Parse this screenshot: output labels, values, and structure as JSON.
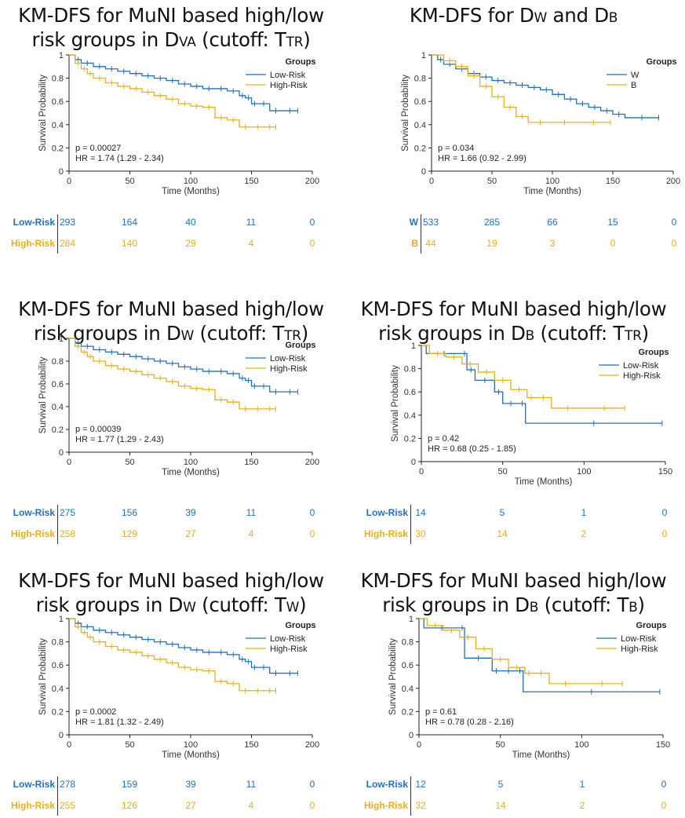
{
  "colors": {
    "low": "#1f6fc2",
    "high": "#e8b012"
  },
  "panels": [
    {
      "title_lines": [
        [
          {
            "t": "KM-DFS for MuNI based high/low"
          }
        ],
        [
          {
            "t": "risk groups in D"
          },
          {
            "t": "VA",
            "sc": true
          },
          {
            "t": " (cutoff: T"
          },
          {
            "t": "TR",
            "sc": true
          },
          {
            "t": ")"
          }
        ]
      ],
      "legend_title": "Groups",
      "stats": [
        "p = 0.00027",
        "HR = 1.74 (1.29 - 2.34)"
      ],
      "risk_table": {
        "times": [
          0,
          50,
          100,
          150,
          200
        ],
        "rows": [
          {
            "label": "Low-Risk",
            "values": [
              "293",
              "164",
              "40",
              "11",
              "0"
            ]
          },
          {
            "label": "High-Risk",
            "values": [
              "284",
              "140",
              "29",
              "4",
              "0"
            ]
          }
        ]
      }
    },
    {
      "title_lines": [
        [
          {
            "t": "KM-DFS for D"
          },
          {
            "t": "W",
            "sc": true
          },
          {
            "t": " and D"
          },
          {
            "t": "B",
            "sc": true
          }
        ]
      ],
      "legend_title": "Groups",
      "stats": [
        "p = 0.034",
        "HR = 1.66 (0.92 - 2.99)"
      ],
      "risk_table": {
        "times": [
          0,
          50,
          100,
          150,
          200
        ],
        "rows": [
          {
            "label": "W",
            "values": [
              "533",
              "285",
              "66",
              "15",
              "0"
            ]
          },
          {
            "label": "B",
            "values": [
              "44",
              "19",
              "3",
              "0",
              "0"
            ]
          }
        ]
      }
    },
    {
      "title_lines": [
        [
          {
            "t": "KM-DFS for MuNI based high/low"
          }
        ],
        [
          {
            "t": "risk groups in D"
          },
          {
            "t": "W",
            "sc": true
          },
          {
            "t": " (cutoff: T"
          },
          {
            "t": "TR",
            "sc": true
          },
          {
            "t": ")"
          }
        ]
      ],
      "legend_title": "Groups",
      "stats": [
        "p = 0.00039",
        "HR = 1.77 (1.29 - 2.43)"
      ],
      "risk_table": {
        "times": [
          0,
          50,
          100,
          150,
          200
        ],
        "rows": [
          {
            "label": "Low-Risk",
            "values": [
              "275",
              "156",
              "39",
              "11",
              "0"
            ]
          },
          {
            "label": "High-Risk",
            "values": [
              "258",
              "129",
              "27",
              "4",
              "0"
            ]
          }
        ]
      }
    },
    {
      "title_lines": [
        [
          {
            "t": "KM-DFS for MuNI based high/low"
          }
        ],
        [
          {
            "t": "risk groups in D"
          },
          {
            "t": "B",
            "sc": true
          },
          {
            "t": " (cutoff: T"
          },
          {
            "t": "TR",
            "sc": true
          },
          {
            "t": ")"
          }
        ]
      ],
      "legend_title": "Groups",
      "stats": [
        "p = 0.42",
        "HR = 0.68 (0.25 - 1.85)"
      ],
      "risk_table": {
        "times": [
          0,
          50,
          100,
          150
        ],
        "rows": [
          {
            "label": "Low-Risk",
            "values": [
              "14",
              "5",
              "1",
              "0"
            ]
          },
          {
            "label": "High-Risk",
            "values": [
              "30",
              "14",
              "2",
              "0"
            ]
          }
        ]
      }
    },
    {
      "title_lines": [
        [
          {
            "t": "KM-DFS for MuNI based high/low"
          }
        ],
        [
          {
            "t": "risk groups in D"
          },
          {
            "t": "W",
            "sc": true
          },
          {
            "t": " (cutoff: T"
          },
          {
            "t": "W",
            "sc": true
          },
          {
            "t": ")"
          }
        ]
      ],
      "legend_title": "Groups",
      "stats": [
        "p = 0.0002",
        "HR = 1.81 (1.32 - 2.49)"
      ],
      "risk_table": {
        "times": [
          0,
          50,
          100,
          150,
          200
        ],
        "rows": [
          {
            "label": "Low-Risk",
            "values": [
              "278",
              "159",
              "39",
              "11",
              "0"
            ]
          },
          {
            "label": "High-Risk",
            "values": [
              "255",
              "126",
              "27",
              "4",
              "0"
            ]
          }
        ]
      }
    },
    {
      "title_lines": [
        [
          {
            "t": "KM-DFS for MuNI based high/low"
          }
        ],
        [
          {
            "t": "risk groups in D"
          },
          {
            "t": "B",
            "sc": true
          },
          {
            "t": " (cutoff: T"
          },
          {
            "t": "B",
            "sc": true
          },
          {
            "t": ")"
          }
        ]
      ],
      "legend_title": "Groups",
      "stats": [
        "p = 0.61",
        "HR = 0.78 (0.28 - 2.16)"
      ],
      "risk_table": {
        "times": [
          0,
          50,
          100,
          150
        ],
        "rows": [
          {
            "label": "Low-Risk",
            "values": [
              "12",
              "5",
              "1",
              "0"
            ]
          },
          {
            "label": "High-Risk",
            "values": [
              "32",
              "14",
              "2",
              "0"
            ]
          }
        ]
      }
    }
  ],
  "chart_data": [
    {
      "type": "line",
      "xlabel": "Time (Months)",
      "ylabel": "Survival Probability",
      "xlim": [
        0,
        200
      ],
      "ylim": [
        0,
        1
      ],
      "xticks": [
        0,
        50,
        100,
        150,
        200
      ],
      "yticks": [
        0,
        0.2,
        0.4,
        0.6,
        0.8,
        1
      ],
      "legend": "top-right",
      "series": [
        {
          "name": "Low-Risk",
          "x": [
            0,
            5,
            10,
            20,
            30,
            40,
            50,
            60,
            70,
            80,
            90,
            100,
            110,
            120,
            130,
            140,
            145,
            150,
            155,
            165,
            175,
            188
          ],
          "y": [
            1,
            0.96,
            0.93,
            0.9,
            0.88,
            0.86,
            0.84,
            0.82,
            0.8,
            0.78,
            0.75,
            0.73,
            0.71,
            0.71,
            0.69,
            0.65,
            0.63,
            0.58,
            0.58,
            0.52,
            0.52,
            0.52
          ]
        },
        {
          "name": "High-Risk",
          "x": [
            0,
            5,
            10,
            15,
            20,
            30,
            40,
            50,
            60,
            70,
            80,
            90,
            100,
            110,
            120,
            130,
            140,
            150,
            160,
            170
          ],
          "y": [
            1,
            0.93,
            0.88,
            0.84,
            0.8,
            0.76,
            0.73,
            0.71,
            0.68,
            0.65,
            0.62,
            0.58,
            0.56,
            0.55,
            0.46,
            0.44,
            0.38,
            0.38,
            0.38,
            0.38
          ]
        }
      ]
    },
    {
      "type": "line",
      "xlabel": "Time (Months)",
      "ylabel": "Survival Probability",
      "xlim": [
        0,
        200
      ],
      "ylim": [
        0,
        1
      ],
      "xticks": [
        0,
        50,
        100,
        150,
        200
      ],
      "yticks": [
        0,
        0.2,
        0.4,
        0.6,
        0.8,
        1
      ],
      "legend": "top-right",
      "series": [
        {
          "name": "W",
          "x": [
            0,
            5,
            10,
            20,
            30,
            40,
            50,
            60,
            70,
            80,
            90,
            100,
            110,
            120,
            130,
            140,
            150,
            160,
            188
          ],
          "y": [
            1,
            0.96,
            0.92,
            0.88,
            0.84,
            0.81,
            0.78,
            0.76,
            0.74,
            0.72,
            0.7,
            0.66,
            0.62,
            0.58,
            0.55,
            0.52,
            0.49,
            0.46,
            0.46
          ]
        },
        {
          "name": "B",
          "x": [
            0,
            10,
            20,
            30,
            40,
            50,
            60,
            70,
            80,
            100,
            120,
            148
          ],
          "y": [
            1,
            0.95,
            0.9,
            0.82,
            0.73,
            0.64,
            0.55,
            0.47,
            0.42,
            0.42,
            0.42,
            0.42
          ]
        }
      ]
    },
    {
      "type": "line",
      "xlabel": "Time (Months)",
      "ylabel": "Survival Probability",
      "xlim": [
        0,
        200
      ],
      "ylim": [
        0,
        1
      ],
      "xticks": [
        0,
        50,
        100,
        150,
        200
      ],
      "yticks": [
        0,
        0.2,
        0.4,
        0.6,
        0.8,
        1
      ],
      "legend": "top-right",
      "series": [
        {
          "name": "Low-Risk",
          "x": [
            0,
            5,
            10,
            20,
            30,
            40,
            50,
            60,
            70,
            80,
            90,
            100,
            110,
            120,
            130,
            140,
            145,
            150,
            155,
            165,
            175,
            188
          ],
          "y": [
            1,
            0.96,
            0.93,
            0.9,
            0.88,
            0.86,
            0.84,
            0.82,
            0.8,
            0.78,
            0.75,
            0.73,
            0.71,
            0.71,
            0.69,
            0.65,
            0.63,
            0.58,
            0.58,
            0.53,
            0.53,
            0.53
          ]
        },
        {
          "name": "High-Risk",
          "x": [
            0,
            5,
            10,
            15,
            20,
            30,
            40,
            50,
            60,
            70,
            80,
            90,
            100,
            110,
            120,
            130,
            140,
            150,
            160,
            170
          ],
          "y": [
            1,
            0.93,
            0.88,
            0.84,
            0.8,
            0.76,
            0.73,
            0.71,
            0.68,
            0.65,
            0.62,
            0.58,
            0.56,
            0.55,
            0.46,
            0.44,
            0.38,
            0.38,
            0.38,
            0.38
          ]
        }
      ]
    },
    {
      "type": "line",
      "xlabel": "Time (Months)",
      "ylabel": "Survival Probability",
      "xlim": [
        0,
        150
      ],
      "ylim": [
        0,
        1
      ],
      "xticks": [
        0,
        50,
        100,
        150
      ],
      "yticks": [
        0,
        0.2,
        0.4,
        0.6,
        0.8,
        1
      ],
      "legend": "top-right",
      "series": [
        {
          "name": "Low-Risk",
          "x": [
            0,
            3,
            25,
            28,
            33,
            45,
            50,
            60,
            64,
            148
          ],
          "y": [
            1,
            0.93,
            0.93,
            0.79,
            0.7,
            0.6,
            0.5,
            0.5,
            0.33,
            0.33
          ]
        },
        {
          "name": "High-Risk",
          "x": [
            0,
            5,
            15,
            25,
            35,
            45,
            55,
            65,
            70,
            80,
            100,
            125
          ],
          "y": [
            1,
            0.93,
            0.9,
            0.84,
            0.77,
            0.7,
            0.62,
            0.55,
            0.55,
            0.46,
            0.46,
            0.46
          ]
        }
      ]
    },
    {
      "type": "line",
      "xlabel": "Time (Months)",
      "ylabel": "Survival Probability",
      "xlim": [
        0,
        200
      ],
      "ylim": [
        0,
        1
      ],
      "xticks": [
        0,
        50,
        100,
        150,
        200
      ],
      "yticks": [
        0,
        0.2,
        0.4,
        0.6,
        0.8,
        1
      ],
      "legend": "top-right",
      "series": [
        {
          "name": "Low-Risk",
          "x": [
            0,
            5,
            10,
            20,
            30,
            40,
            50,
            60,
            70,
            80,
            90,
            100,
            110,
            120,
            130,
            140,
            145,
            150,
            155,
            165,
            175,
            188
          ],
          "y": [
            1,
            0.96,
            0.93,
            0.9,
            0.88,
            0.86,
            0.84,
            0.82,
            0.8,
            0.78,
            0.75,
            0.73,
            0.71,
            0.71,
            0.69,
            0.65,
            0.63,
            0.58,
            0.58,
            0.53,
            0.53,
            0.53
          ]
        },
        {
          "name": "High-Risk",
          "x": [
            0,
            5,
            10,
            15,
            20,
            30,
            40,
            50,
            60,
            70,
            80,
            90,
            100,
            110,
            120,
            130,
            140,
            150,
            160,
            170
          ],
          "y": [
            1,
            0.93,
            0.88,
            0.84,
            0.8,
            0.76,
            0.73,
            0.71,
            0.68,
            0.65,
            0.62,
            0.58,
            0.56,
            0.55,
            0.46,
            0.44,
            0.38,
            0.38,
            0.38,
            0.38
          ]
        }
      ]
    },
    {
      "type": "line",
      "xlabel": "Time (Months)",
      "ylabel": "Survival Probability",
      "xlim": [
        0,
        150
      ],
      "ylim": [
        0,
        1
      ],
      "xticks": [
        0,
        50,
        100,
        150
      ],
      "yticks": [
        0,
        0.2,
        0.4,
        0.6,
        0.8,
        1
      ],
      "legend": "top-right",
      "series": [
        {
          "name": "Low-Risk",
          "x": [
            0,
            3,
            25,
            28,
            45,
            50,
            60,
            64,
            148
          ],
          "y": [
            1,
            0.92,
            0.92,
            0.66,
            0.55,
            0.55,
            0.55,
            0.37,
            0.37
          ]
        },
        {
          "name": "High-Risk",
          "x": [
            0,
            5,
            15,
            25,
            35,
            45,
            55,
            65,
            70,
            80,
            100,
            125
          ],
          "y": [
            1,
            0.94,
            0.9,
            0.84,
            0.74,
            0.65,
            0.58,
            0.53,
            0.53,
            0.44,
            0.44,
            0.44
          ]
        }
      ]
    }
  ]
}
